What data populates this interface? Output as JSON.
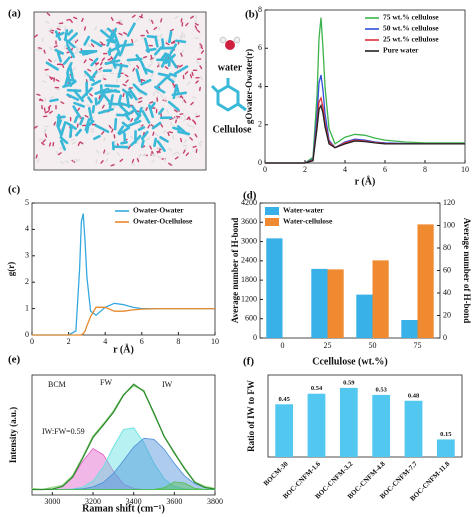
{
  "panel_a": {
    "label": "(a)",
    "water": "water",
    "cellulose": "Cellulose"
  },
  "chart_data": [
    {
      "type": "line",
      "label": "(b)",
      "xlabel": "r (Å)",
      "ylabel": "gOwater-Owater(r)",
      "legend": "upper right",
      "xlim": [
        0,
        10
      ],
      "ylim": [
        0,
        8
      ],
      "xticks": [
        0,
        2,
        4,
        6,
        8,
        10
      ],
      "yticks": [
        0,
        2,
        4,
        6,
        8
      ],
      "x": [
        0,
        2,
        2.4,
        2.6,
        2.7,
        2.8,
        2.9,
        3.0,
        3.2,
        3.5,
        4,
        4.5,
        5,
        5.5,
        6,
        7,
        8,
        9,
        10
      ],
      "series": [
        {
          "name": "75 wt.% cellulose",
          "color": "#3cb44b",
          "values": [
            0,
            0,
            0.3,
            3.5,
            6.5,
            7.6,
            6.0,
            4.0,
            1.8,
            1.0,
            1.35,
            1.5,
            1.45,
            1.3,
            1.2,
            1.1,
            1.05,
            1.05,
            1.05
          ]
        },
        {
          "name": "50 wt.% cellulose",
          "color": "#2f4fd8",
          "values": [
            0,
            0,
            0.2,
            2.5,
            4.2,
            4.6,
            3.8,
            2.6,
            1.2,
            0.8,
            1.1,
            1.25,
            1.2,
            1.1,
            1.05,
            1.02,
            1.0,
            1.0,
            1.0
          ]
        },
        {
          "name": "25 wt.% cellulose",
          "color": "#e0303a",
          "values": [
            0,
            0,
            0.15,
            2.0,
            3.2,
            3.4,
            2.9,
            2.1,
            1.1,
            0.8,
            1.05,
            1.2,
            1.15,
            1.07,
            1.02,
            1.0,
            1.0,
            1.0,
            1.0
          ]
        },
        {
          "name": "Pure water",
          "color": "#222222",
          "values": [
            0,
            0,
            0.12,
            1.8,
            2.8,
            3.0,
            2.6,
            1.9,
            1.0,
            0.8,
            1.0,
            1.15,
            1.12,
            1.05,
            1.0,
            1.0,
            1.0,
            1.0,
            1.0
          ]
        }
      ]
    },
    {
      "type": "line",
      "label": "(c)",
      "xlabel": "r (Å)",
      "ylabel": "g(r)",
      "legend": "upper right",
      "xlim": [
        0,
        10
      ],
      "ylim": [
        0,
        5
      ],
      "xticks": [
        0,
        2,
        4,
        6,
        8,
        10
      ],
      "yticks": [
        0,
        1,
        2,
        3,
        4,
        5
      ],
      "x": [
        0,
        2,
        2.4,
        2.6,
        2.7,
        2.8,
        2.9,
        3.0,
        3.2,
        3.5,
        4,
        4.5,
        5,
        5.5,
        6,
        7,
        8,
        9,
        10
      ],
      "series": [
        {
          "name": "Owater-Owater",
          "color": "#35a8e0",
          "values": [
            0,
            0,
            0.15,
            2.5,
            4.3,
            4.6,
            3.5,
            2.2,
            0.9,
            0.75,
            1.05,
            1.2,
            1.15,
            1.05,
            1.0,
            1.0,
            1.0,
            1.0,
            1.0
          ]
        },
        {
          "name": "Owater-Ocellulose",
          "color": "#e8892b",
          "values": [
            0,
            0,
            0,
            0,
            0.01,
            0.05,
            0.15,
            0.35,
            0.7,
            1.05,
            1.05,
            0.9,
            0.9,
            0.95,
            0.98,
            1.0,
            1.0,
            1.0,
            1.0
          ]
        }
      ]
    },
    {
      "type": "bar",
      "label": "(d)",
      "xlabel": "Ccellulose (wt.%)",
      "ylabel": "Average number of H-bond",
      "y2label": "Average number of H-bond",
      "legend": "upper left",
      "categories": [
        "0",
        "25",
        "50",
        "75"
      ],
      "ylim": [
        0,
        4200
      ],
      "yticks": [
        0,
        600,
        1200,
        1800,
        2400,
        3000,
        3600,
        4200
      ],
      "y2lim": [
        0,
        120
      ],
      "y2ticks": [
        0,
        20,
        40,
        60,
        80,
        100,
        120
      ],
      "ycolor": "#35a8e0",
      "y2color": "#e8892b",
      "series": [
        {
          "name": "Water-water",
          "color": "#38b0e8",
          "values": [
            3100,
            2150,
            1350,
            560
          ]
        },
        {
          "name": "Water-cellulose",
          "color": "#f08a30",
          "axis": "y2",
          "values": [
            null,
            61,
            69,
            101
          ]
        }
      ]
    },
    {
      "type": "line",
      "label": "(e)",
      "xlabel": "Raman shift (cm⁻¹)",
      "ylabel": "Intensity (a.u.)",
      "annotations": [
        "BCM",
        "FW",
        "IW",
        "IW:FW=0.59"
      ],
      "xlim": [
        2900,
        3800
      ],
      "ylim": [
        -0.05,
        1.05
      ],
      "xticks": [
        3000,
        3200,
        3400,
        3600,
        3800
      ],
      "x": [
        2900,
        2950,
        3000,
        3050,
        3100,
        3150,
        3200,
        3250,
        3300,
        3350,
        3400,
        3450,
        3500,
        3550,
        3600,
        3650,
        3700,
        3750,
        3800
      ],
      "series": [
        {
          "color": "#e060c8",
          "fill": true,
          "values": [
            0,
            0,
            0.004,
            0.028,
            0.11,
            0.26,
            0.376,
            0.32,
            0.17,
            0.05,
            0.01,
            0,
            0,
            0,
            0,
            0,
            0,
            0,
            0
          ]
        },
        {
          "color": "#5fe0e0",
          "fill": true,
          "values": [
            0,
            0,
            0,
            0.001,
            0.005,
            0.022,
            0.078,
            0.205,
            0.39,
            0.55,
            0.566,
            0.43,
            0.24,
            0.098,
            0.029,
            0.006,
            0.001,
            0,
            0
          ]
        },
        {
          "color": "#4a8fd9",
          "fill": true,
          "values": [
            0,
            0,
            0,
            0,
            0.002,
            0.007,
            0.024,
            0.065,
            0.146,
            0.265,
            0.39,
            0.47,
            0.46,
            0.37,
            0.24,
            0.126,
            0.054,
            0.019,
            0.005
          ]
        },
        {
          "color": "#50c050",
          "fill": true,
          "values": [
            0,
            0,
            0,
            0,
            0,
            0,
            0,
            0,
            0,
            0,
            0,
            0,
            0.001,
            0.017,
            0.07,
            0.06,
            0.011,
            0,
            0
          ]
        },
        {
          "color": "#9edc8e",
          "values": [
            0.01,
            0,
            0.02,
            0.04,
            0.13,
            0.3,
            0.49,
            0.6,
            0.72,
            0.87,
            0.95,
            0.91,
            0.69,
            0.49,
            0.33,
            0.2,
            0.07,
            0.03,
            0.01
          ]
        },
        {
          "color": "#2e8b2e",
          "values": [
            0,
            0,
            0.004,
            0.029,
            0.117,
            0.289,
            0.478,
            0.59,
            0.706,
            0.865,
            0.966,
            0.9,
            0.701,
            0.485,
            0.339,
            0.192,
            0.066,
            0.019,
            0.005
          ]
        }
      ]
    },
    {
      "type": "bar",
      "label": "(f)",
      "ylabel": "Ratio of IW to FW",
      "value_labels_shown": true,
      "categories": [
        "BOCM-30",
        "BOC-CNFM-1.6",
        "BOC-CNFM-3.2",
        "BOC-CNFM-4.8",
        "BOC-CNFM-7.7",
        "BOC-CNFM-11.8"
      ],
      "ylim": [
        0,
        0.7
      ],
      "series": [
        {
          "color": "#52c8f0",
          "values": [
            0.45,
            0.54,
            0.59,
            0.53,
            0.48,
            0.15
          ]
        }
      ]
    }
  ]
}
